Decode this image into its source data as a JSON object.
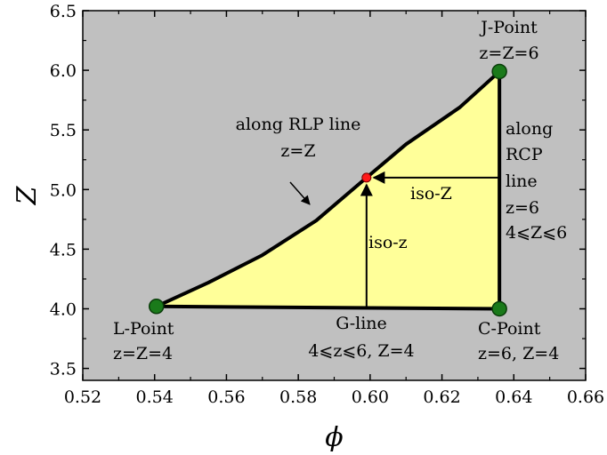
{
  "chart_data": {
    "type": "line",
    "xlabel": "ϕ",
    "ylabel": "Z",
    "xlim": [
      0.52,
      0.66
    ],
    "ylim": [
      3.4,
      6.5
    ],
    "x_ticks": [
      "0.52",
      "0.54",
      "0.56",
      "0.58",
      "0.60",
      "0.62",
      "0.64",
      "0.66"
    ],
    "y_ticks": [
      "3.5",
      "4.0",
      "4.5",
      "5.0",
      "5.5",
      "6.0",
      "6.5"
    ],
    "grid": false,
    "colors": {
      "background": "#c0c0c0",
      "region_fill": "#ffff99",
      "boundary": "#000000",
      "corner_points": "#1a7a1a",
      "iso_point": "#ff1a1a"
    },
    "series": [
      {
        "name": "RLP line",
        "points": [
          [
            0.5405,
            4.02
          ],
          [
            0.555,
            4.22
          ],
          [
            0.57,
            4.45
          ],
          [
            0.585,
            4.74
          ],
          [
            0.599,
            5.1
          ],
          [
            0.61,
            5.38
          ],
          [
            0.625,
            5.69
          ],
          [
            0.636,
            5.99
          ]
        ]
      },
      {
        "name": "RCP line",
        "points": [
          [
            0.636,
            4.0
          ],
          [
            0.636,
            5.99
          ]
        ]
      },
      {
        "name": "G-line",
        "points": [
          [
            0.5405,
            4.02
          ],
          [
            0.636,
            4.0
          ]
        ]
      }
    ],
    "corner_points": [
      {
        "name": "J-Point",
        "x": 0.636,
        "y": 5.99
      },
      {
        "name": "L-Point",
        "x": 0.5405,
        "y": 4.02
      },
      {
        "name": "C-Point",
        "x": 0.636,
        "y": 4.0
      }
    ],
    "iso_point": {
      "x": 0.599,
      "y": 5.1
    },
    "arrows": [
      {
        "label": "iso-z",
        "from": [
          0.599,
          4.0
        ],
        "to": [
          0.599,
          5.1
        ]
      },
      {
        "label": "iso-Z",
        "from": [
          0.636,
          5.1
        ],
        "to": [
          0.599,
          5.1
        ]
      }
    ],
    "annotations": {
      "j_point": [
        "J-Point",
        "z=Z=6"
      ],
      "l_point": [
        "L-Point",
        "z=Z=4"
      ],
      "c_point": [
        "C-Point",
        "z=6, Z=4"
      ],
      "g_line": [
        "G-line",
        "4⩽z⩽6, Z=4"
      ],
      "rlp": [
        "along RLP line",
        "z=Z"
      ],
      "rcp": [
        "along",
        "RCP",
        "line",
        "z=6",
        "4⩽Z⩽6"
      ],
      "iso_z_small": "iso-z",
      "iso_z_big": "iso-Z"
    }
  }
}
